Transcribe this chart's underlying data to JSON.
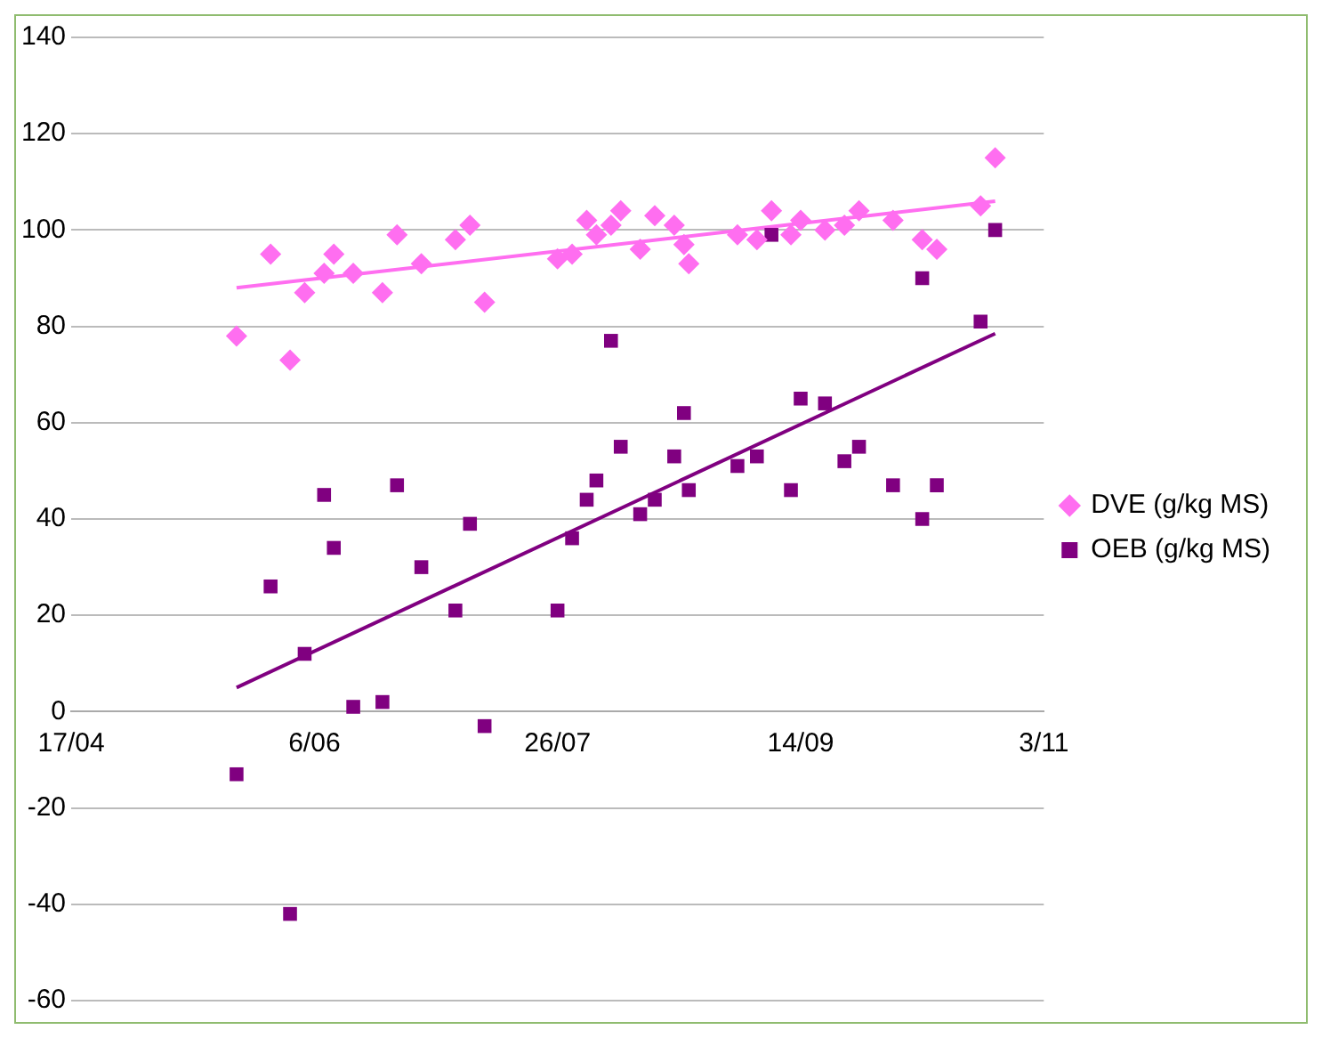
{
  "chart_data": {
    "type": "scatter",
    "xlim": [
      "--04-17",
      "--11-03"
    ],
    "xticks": [
      {
        "value": "--04-17",
        "label": "17/04"
      },
      {
        "value": "--06-06",
        "label": "6/06"
      },
      {
        "value": "--07-26",
        "label": "26/07"
      },
      {
        "value": "--09-14",
        "label": "14/09"
      },
      {
        "value": "--11-03",
        "label": "3/11"
      }
    ],
    "ylim": [
      -60,
      140
    ],
    "yticks": [
      -60,
      -40,
      -20,
      0,
      20,
      40,
      60,
      80,
      100,
      120,
      140
    ],
    "grid": "y",
    "legend": "right",
    "series": [
      {
        "name": "DVE (g/kg MS)",
        "type": "scatter",
        "marker": "diamond",
        "color": "#ff6ef0",
        "x": [
          "--05-21",
          "--05-28",
          "--06-01",
          "--06-04",
          "--06-08",
          "--06-10",
          "--06-14",
          "--06-20",
          "--06-23",
          "--06-28",
          "--07-05",
          "--07-08",
          "--07-11",
          "--07-26",
          "--07-29",
          "--08-01",
          "--08-03",
          "--08-06",
          "--08-08",
          "--08-12",
          "--08-15",
          "--08-19",
          "--08-21",
          "--08-22",
          "--09-01",
          "--09-05",
          "--09-08",
          "--09-12",
          "--09-14",
          "--09-19",
          "--09-23",
          "--09-26",
          "--10-03",
          "--10-09",
          "--10-12",
          "--10-21",
          "--10-24"
        ],
        "values": [
          78,
          95,
          73,
          87,
          91,
          95,
          91,
          87,
          99,
          93,
          98,
          101,
          85,
          94,
          95,
          102,
          99,
          101,
          104,
          96,
          103,
          101,
          97,
          93,
          99,
          98,
          104,
          99,
          102,
          100,
          101,
          104,
          102,
          98,
          96,
          105,
          115
        ]
      },
      {
        "name": "OEB (g/kg MS)",
        "type": "scatter",
        "marker": "square",
        "color": "#800080",
        "x": [
          "--05-21",
          "--05-28",
          "--06-01",
          "--06-04",
          "--06-08",
          "--06-10",
          "--06-14",
          "--06-20",
          "--06-23",
          "--06-28",
          "--07-05",
          "--07-08",
          "--07-11",
          "--07-26",
          "--07-29",
          "--08-01",
          "--08-03",
          "--08-06",
          "--08-08",
          "--08-12",
          "--08-15",
          "--08-19",
          "--08-21",
          "--08-22",
          "--09-01",
          "--09-05",
          "--09-08",
          "--09-12",
          "--09-14",
          "--09-19",
          "--09-23",
          "--09-26",
          "--10-03",
          "--10-09",
          "--10-09",
          "--10-12",
          "--10-21",
          "--10-24"
        ],
        "values": [
          -13,
          26,
          -42,
          12,
          45,
          34,
          1,
          2,
          47,
          30,
          21,
          39,
          -3,
          21,
          36,
          44,
          48,
          77,
          55,
          41,
          44,
          53,
          62,
          46,
          51,
          53,
          99,
          46,
          65,
          64,
          52,
          55,
          47,
          90,
          40,
          47,
          81,
          100
        ]
      },
      {
        "type": "line",
        "marker": "none",
        "color": "#ff6ef0",
        "x": [
          "--05-21",
          "--10-24"
        ],
        "values": [
          88,
          106
        ]
      },
      {
        "type": "line",
        "marker": "none",
        "color": "#800080",
        "x": [
          "--05-21",
          "--10-24"
        ],
        "values": [
          5,
          78.5
        ]
      }
    ]
  }
}
